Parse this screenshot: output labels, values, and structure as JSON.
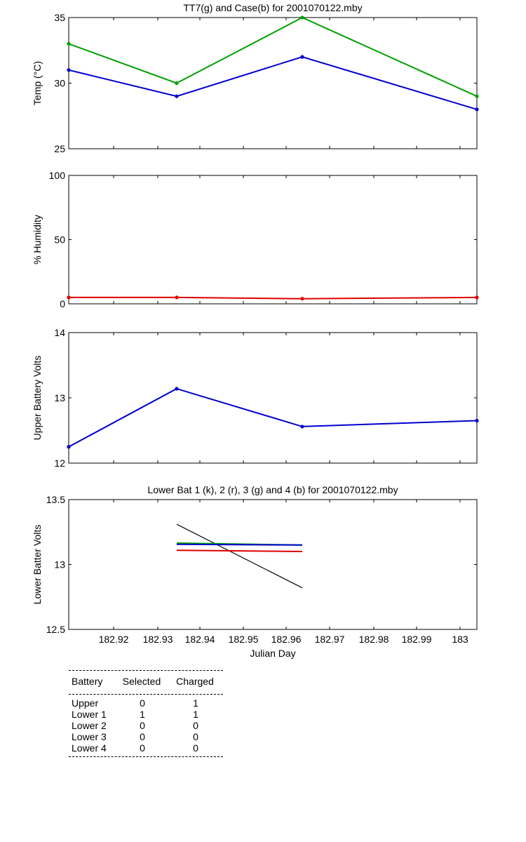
{
  "chart_data": [
    {
      "type": "line",
      "title": "TT7(g) and Case(b) for 2001070122.mby",
      "xlabel": "",
      "ylabel": "Temp  (°C)",
      "xlim": [
        182.9,
        183.004
      ],
      "ylim": [
        25,
        35
      ],
      "yticks": [
        "25",
        "30",
        "35"
      ],
      "grid": false,
      "series": [
        {
          "color": "#00a000",
          "x": [
            182.9,
            182.9275,
            182.9595,
            183.004
          ],
          "y": [
            33,
            30,
            35,
            29
          ]
        },
        {
          "color": "#0000d0",
          "x": [
            182.9,
            182.9275,
            182.9595,
            183.004
          ],
          "y": [
            31,
            29,
            32,
            28
          ]
        }
      ]
    },
    {
      "type": "line",
      "title": "",
      "xlabel": "",
      "ylabel": "% Humidity",
      "xlim": [
        182.9,
        183.004
      ],
      "ylim": [
        0,
        100
      ],
      "yticks": [
        "0",
        "50",
        "100"
      ],
      "grid": false,
      "series": [
        {
          "color": "#e00000",
          "x": [
            182.9,
            182.9275,
            182.9595,
            183.004
          ],
          "y": [
            5,
            5,
            4,
            5
          ]
        }
      ]
    },
    {
      "type": "line",
      "title": "",
      "xlabel": "",
      "ylabel": "Upper Battery Volts",
      "xlim": [
        182.9,
        183.004
      ],
      "ylim": [
        12,
        14
      ],
      "yticks": [
        "12",
        "13",
        "14"
      ],
      "grid": false,
      "series": [
        {
          "color": "#0000d0",
          "x": [
            182.9,
            182.9275,
            182.9595,
            183.004
          ],
          "y": [
            12.25,
            13.14,
            12.56,
            12.65
          ]
        }
      ]
    },
    {
      "type": "line",
      "title": "Lower Bat 1 (k), 2 (r), 3 (g) and 4 (b) for 2001070122.mby",
      "xlabel": "Julian Day",
      "ylabel": "Lower Batter Volts",
      "xlim": [
        182.9,
        183.004
      ],
      "ylim": [
        12.5,
        13.5
      ],
      "yticks": [
        "12.5",
        "13",
        "13.5"
      ],
      "xticks": [
        "182.92",
        "182.93",
        "182.94",
        "182.95",
        "182.96",
        "182.97",
        "182.98",
        "182.99",
        "183"
      ],
      "grid": false,
      "series": [
        {
          "color": "#000000",
          "x": [
            182.9275,
            182.9595
          ],
          "y": [
            13.31,
            12.82
          ]
        },
        {
          "color": "#e00000",
          "x": [
            182.9275,
            182.9595
          ],
          "y": [
            13.11,
            13.1
          ]
        },
        {
          "color": "#00a000",
          "x": [
            182.9275,
            182.9595
          ],
          "y": [
            13.165,
            13.15
          ]
        },
        {
          "color": "#0000d0",
          "x": [
            182.9275,
            182.9595
          ],
          "y": [
            13.155,
            13.15
          ]
        }
      ]
    }
  ],
  "battery_table": {
    "headers": [
      "Battery",
      "Selected",
      "Charged"
    ],
    "rows": [
      {
        "battery": "Upper",
        "selected": "0",
        "charged": "1"
      },
      {
        "battery": "Lower 1",
        "selected": "1",
        "charged": "1"
      },
      {
        "battery": "Lower 2",
        "selected": "0",
        "charged": "0"
      },
      {
        "battery": "Lower 3",
        "selected": "0",
        "charged": "0"
      },
      {
        "battery": "Lower 4",
        "selected": "0",
        "charged": "0"
      }
    ]
  }
}
